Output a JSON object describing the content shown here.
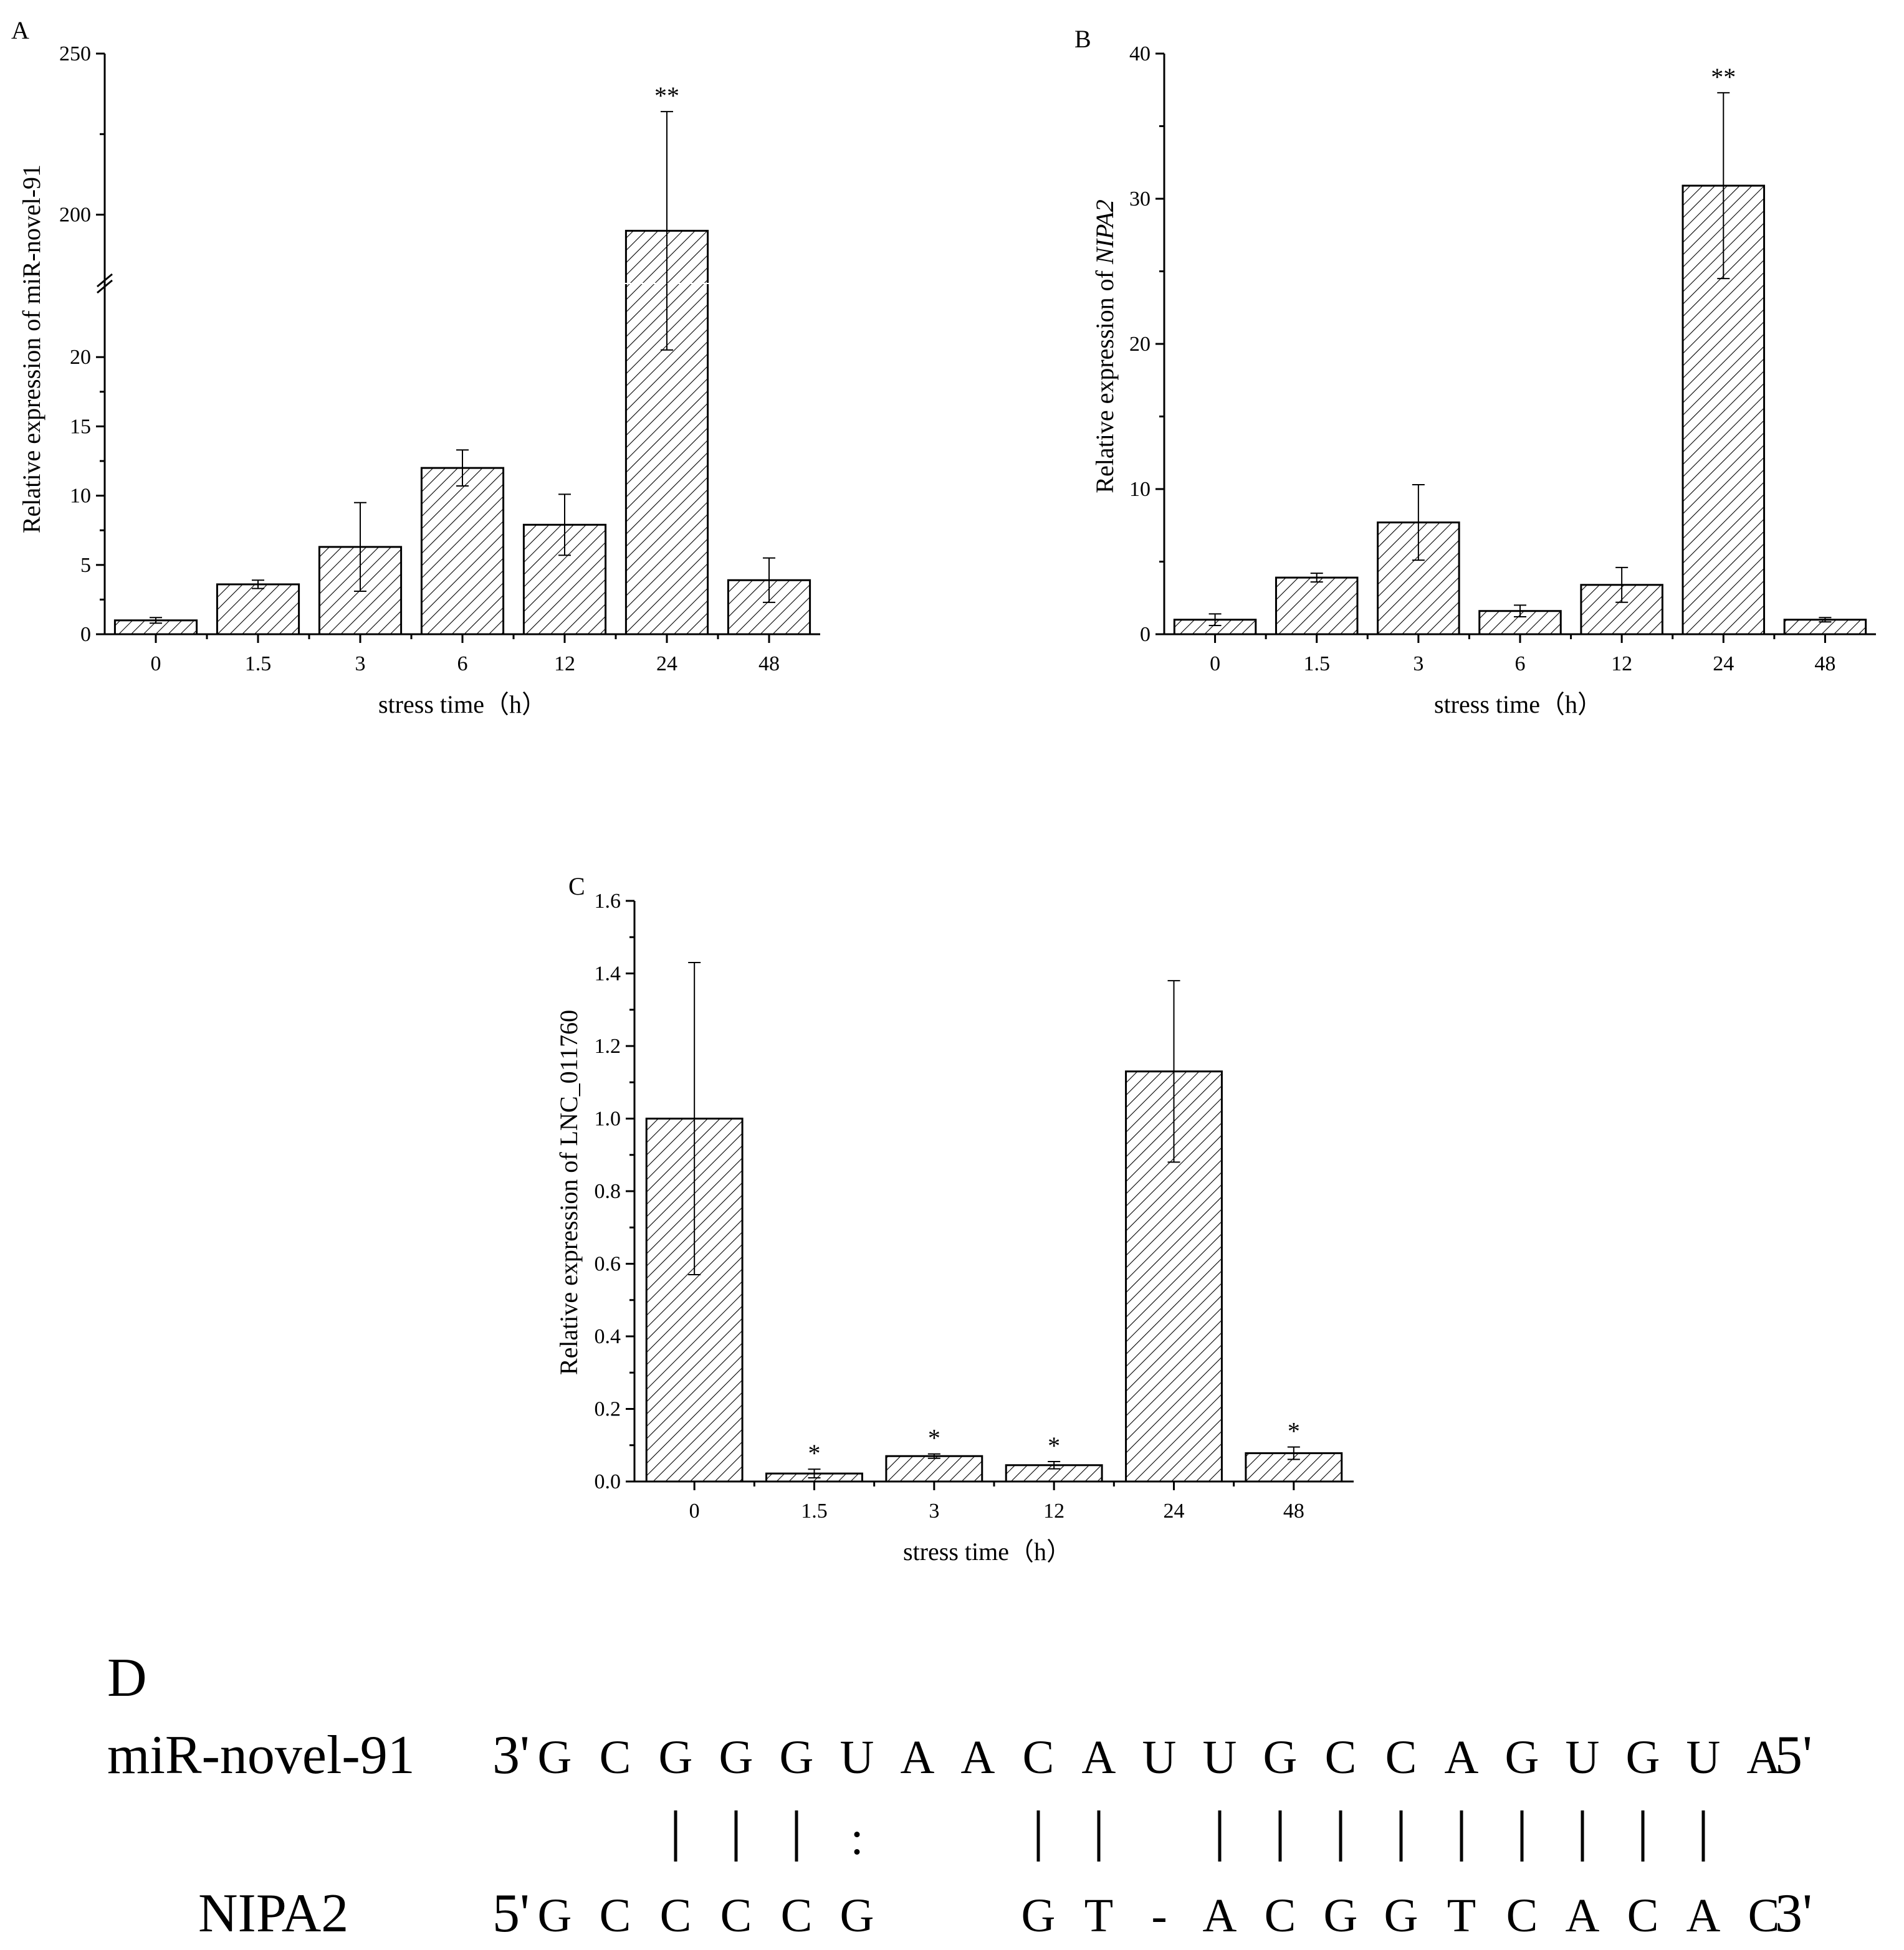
{
  "chart_data": [
    {
      "panel": "A",
      "type": "bar",
      "categories": [
        "0",
        "1.5",
        "3",
        "6",
        "12",
        "24",
        "48"
      ],
      "values": [
        1.0,
        3.6,
        6.3,
        12.0,
        7.9,
        195,
        3.9
      ],
      "errors": [
        0.2,
        0.3,
        3.2,
        1.3,
        2.2,
        37,
        1.6
      ],
      "significance": [
        "",
        "",
        "",
        "",
        "",
        "**",
        ""
      ],
      "xlabel": "stress time（h）",
      "ylabel": "Relative expression of miR-novel-91",
      "y_lower_range": [
        0,
        25
      ],
      "y_lower_ticks": [
        0,
        5,
        10,
        15,
        20
      ],
      "y_upper_range": [
        180,
        250
      ],
      "y_upper_ticks": [
        200,
        250
      ],
      "axis_break": true
    },
    {
      "panel": "B",
      "type": "bar",
      "categories": [
        "0",
        "1.5",
        "3",
        "6",
        "12",
        "24",
        "48"
      ],
      "values": [
        1.0,
        3.9,
        7.7,
        1.6,
        3.4,
        30.9,
        1.0
      ],
      "errors": [
        0.4,
        0.3,
        2.6,
        0.4,
        1.2,
        6.4,
        0.15
      ],
      "significance": [
        "",
        "",
        "",
        "",
        "",
        "**",
        ""
      ],
      "xlabel": "stress time（h）",
      "ylabel_prefix": "Relative expression of ",
      "ylabel_gene": "NIPA2",
      "ylim": [
        0,
        40
      ],
      "yticks": [
        0,
        10,
        20,
        30,
        40
      ]
    },
    {
      "panel": "C",
      "type": "bar",
      "categories": [
        "0",
        "1.5",
        "3",
        "12",
        "24",
        "48"
      ],
      "values": [
        1.0,
        0.022,
        0.07,
        0.045,
        1.13,
        0.078
      ],
      "errors": [
        0.43,
        0.012,
        0.006,
        0.01,
        0.25,
        0.017
      ],
      "significance": [
        "",
        "*",
        "*",
        "*",
        "",
        "*"
      ],
      "xlabel": "stress time（h）",
      "ylabel": "Relative expression of LNC_011760",
      "ylim": [
        0,
        1.6
      ],
      "yticks": [
        "0.0",
        "0.2",
        "0.4",
        "0.6",
        "0.8",
        "1.0",
        "1.2",
        "1.4",
        "1.6"
      ]
    }
  ],
  "panel_d": {
    "letter": "D",
    "mirna_label": "miR-novel-91",
    "mirna_prefix": "3'",
    "mirna_bases": [
      "G",
      "C",
      "G",
      "G",
      "G",
      "U",
      "A",
      "A",
      "C",
      "A",
      "U",
      "U",
      "G",
      "C",
      "C",
      "A",
      "G",
      "U",
      "G",
      "U",
      "A"
    ],
    "mirna_suffix": "5'",
    "pairing": [
      " ",
      " ",
      "|",
      "|",
      "|",
      ":",
      " ",
      " ",
      "|",
      "|",
      " ",
      "|",
      "|",
      "|",
      "|",
      "|",
      "|",
      "|",
      "|",
      "|",
      " "
    ],
    "target_label": "NIPA2",
    "target_prefix": "5'",
    "target_bases": [
      "G",
      "C",
      "C",
      "C",
      "C",
      "G",
      " ",
      " ",
      "G",
      "T",
      "-",
      "A",
      "C",
      "G",
      "G",
      "T",
      "C",
      "A",
      "C",
      "A",
      "C"
    ],
    "target_suffix": "3'"
  }
}
